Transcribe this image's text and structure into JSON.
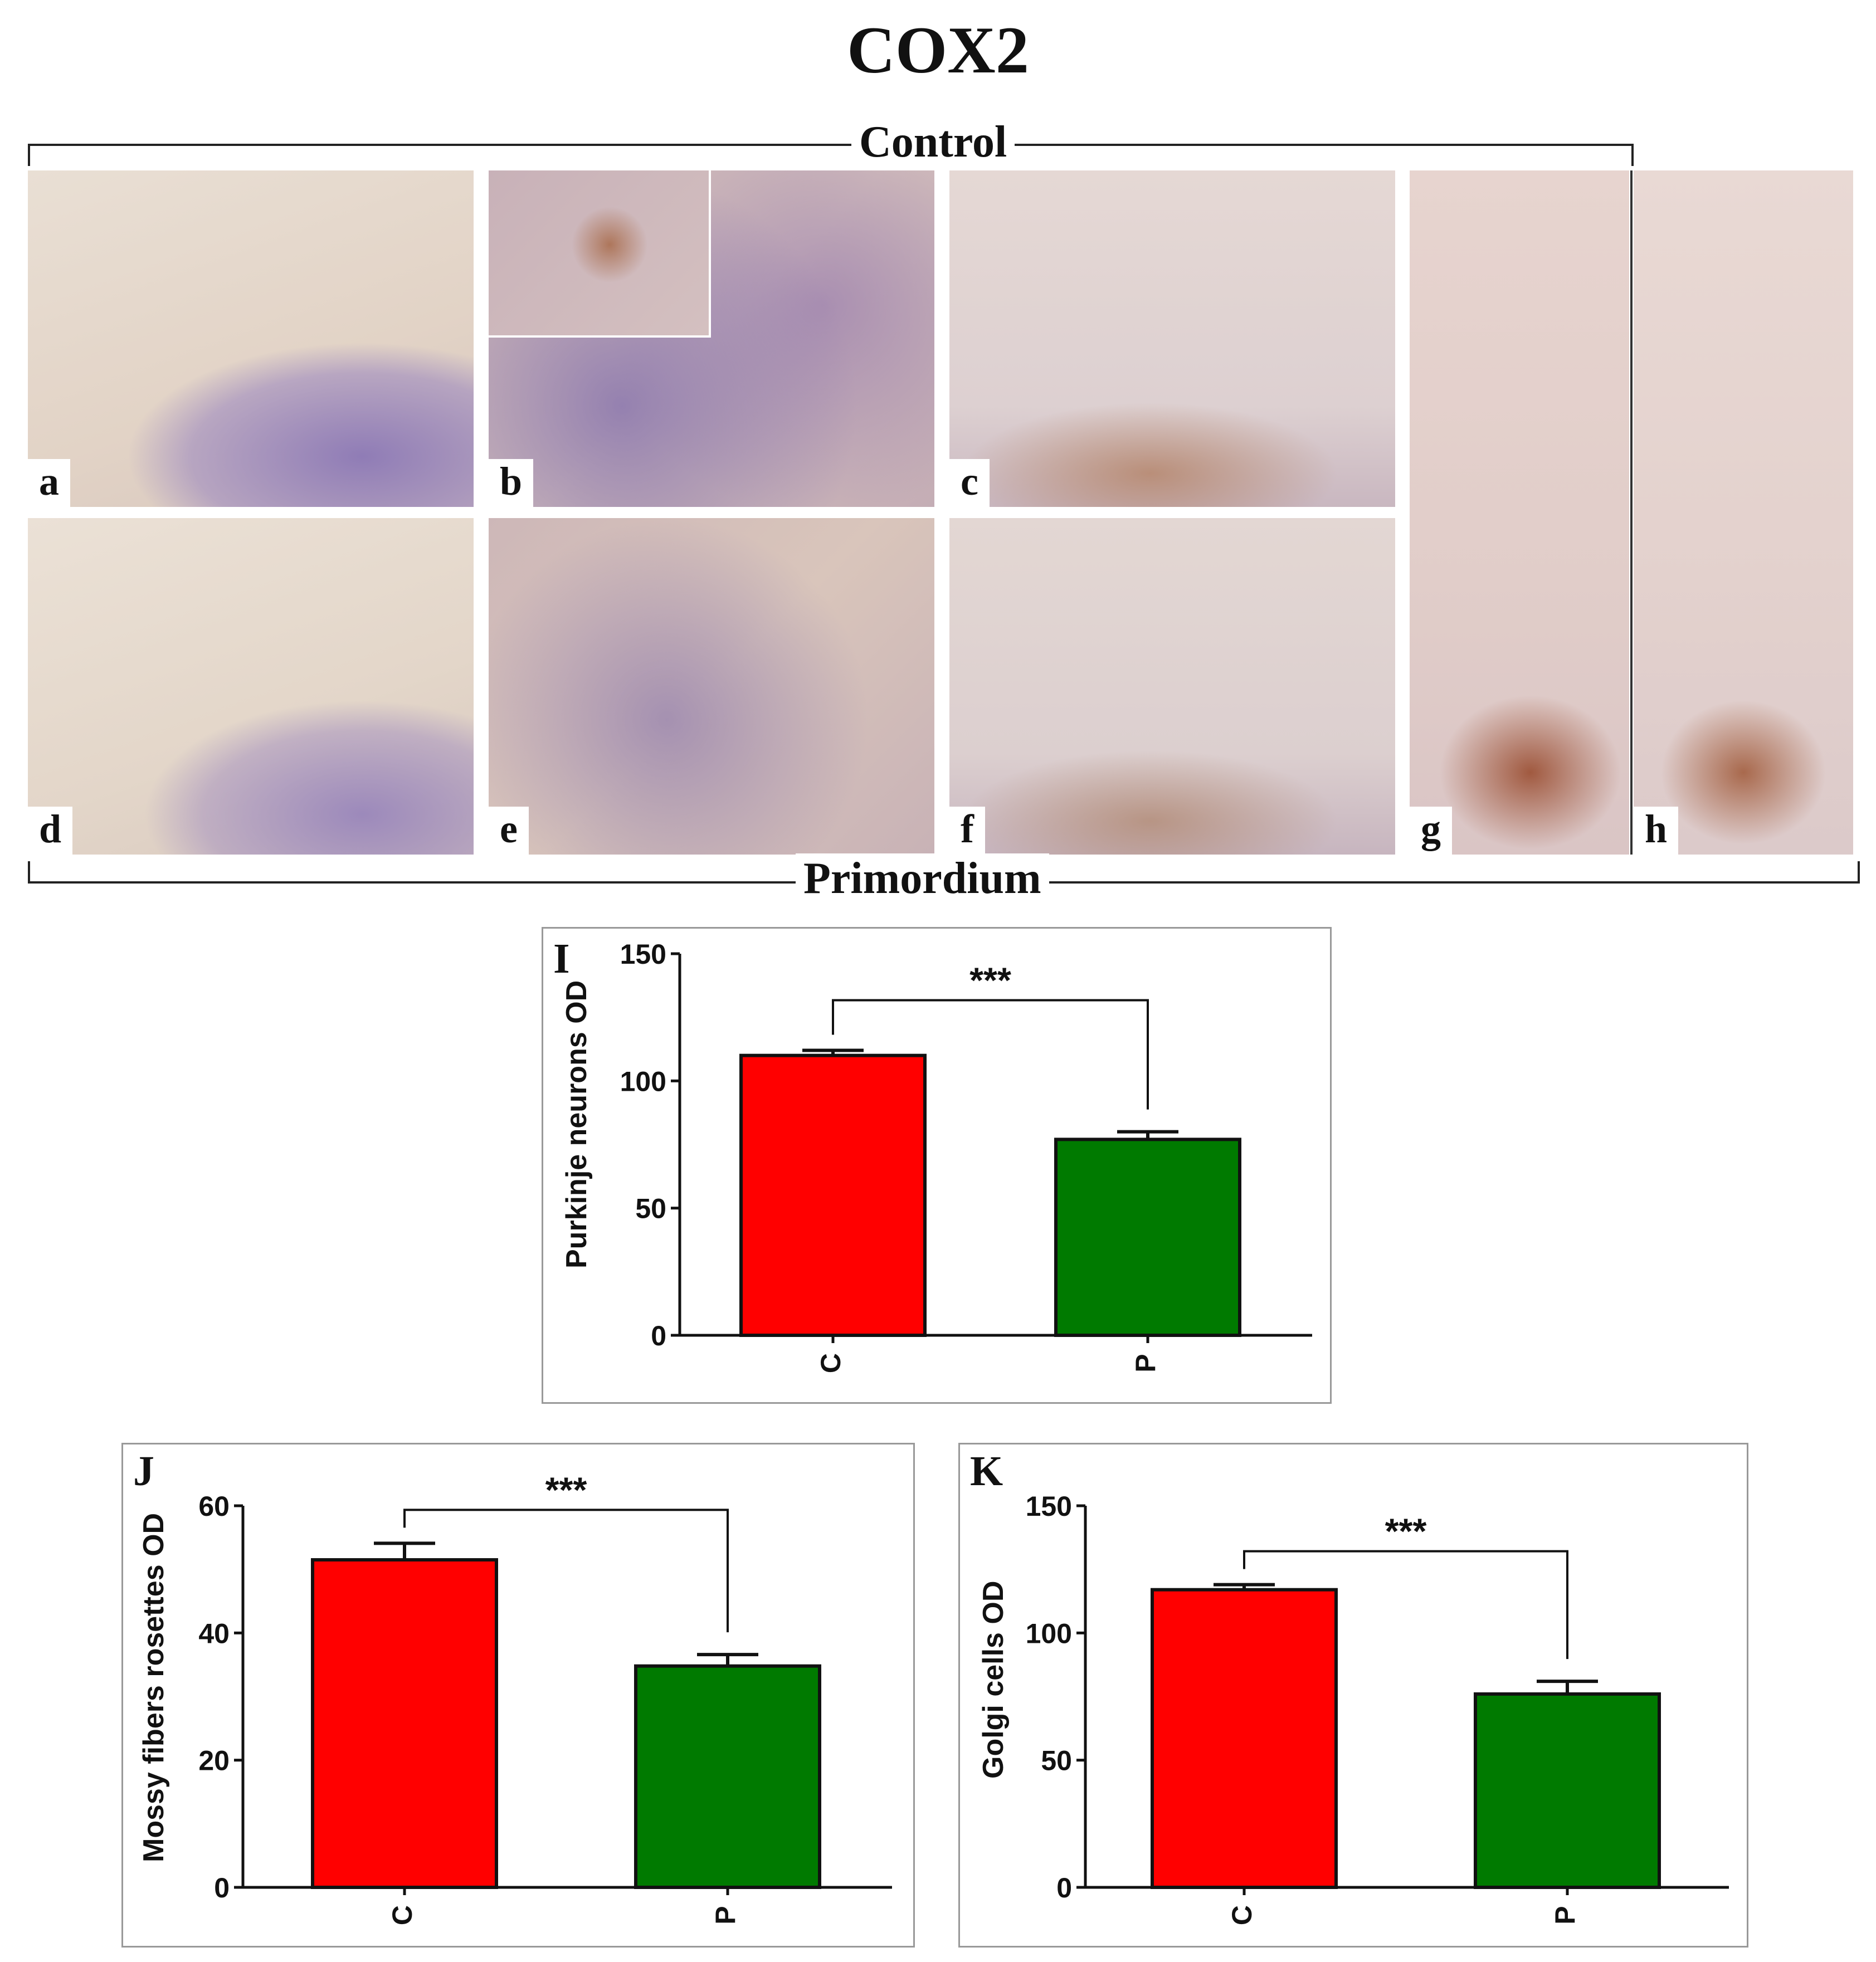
{
  "figure": {
    "title": "COX2",
    "group_top": "Control",
    "group_bottom": "Primordium",
    "panels": [
      "a",
      "b",
      "c",
      "d",
      "e",
      "f",
      "g",
      "h"
    ]
  },
  "chart_data": [
    {
      "type": "bar",
      "panel_label": "I",
      "categories": [
        "C",
        "P"
      ],
      "values": [
        110,
        77
      ],
      "errors": [
        2,
        3
      ],
      "colors": [
        "#ff0000",
        "#007a00"
      ],
      "ylabel": "Purkinje neurons OD",
      "ylim": [
        0,
        150
      ],
      "yticks": [
        0,
        50,
        100,
        150
      ],
      "significance": "***"
    },
    {
      "type": "bar",
      "panel_label": "J",
      "categories": [
        "C",
        "P"
      ],
      "values": [
        51.5,
        34.8
      ],
      "errors": [
        2.6,
        1.8
      ],
      "colors": [
        "#ff0000",
        "#007a00"
      ],
      "ylabel": "Mossy fibers rosettes OD",
      "ylim": [
        0,
        60
      ],
      "yticks": [
        0,
        20,
        40,
        60
      ],
      "significance": "***"
    },
    {
      "type": "bar",
      "panel_label": "K",
      "categories": [
        "C",
        "P"
      ],
      "values": [
        117,
        76
      ],
      "errors": [
        2,
        5
      ],
      "colors": [
        "#ff0000",
        "#007a00"
      ],
      "ylabel": "Golgi cells OD",
      "ylim": [
        0,
        150
      ],
      "yticks": [
        0,
        50,
        100,
        150
      ],
      "significance": "***"
    }
  ]
}
